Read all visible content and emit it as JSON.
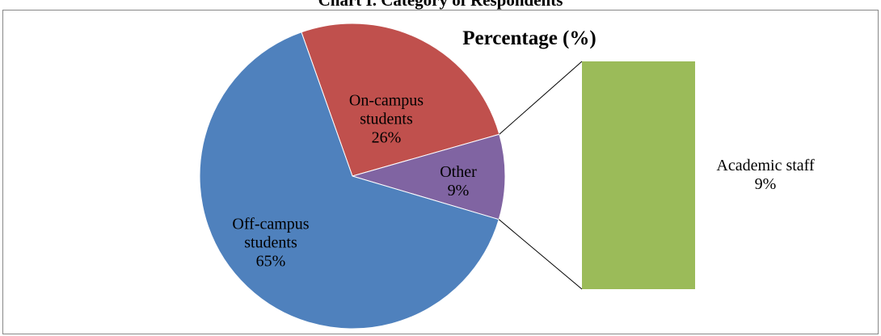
{
  "chart_data": {
    "type": "pie",
    "title": "Chart I. Category of Respondents",
    "subtitle": "Percentage (%)",
    "categories": [
      "On-campus students",
      "Other",
      "Off-campus students"
    ],
    "values": [
      26,
      9,
      65
    ],
    "value_labels": [
      "26%",
      "9%",
      "65%"
    ],
    "colors": [
      "#c0504d",
      "#8064a2",
      "#4f81bd"
    ],
    "bar_of_pie": {
      "categories": [
        "Academic staff"
      ],
      "values": [
        9
      ],
      "value_labels": [
        "9%"
      ],
      "color": "#9bbb59"
    }
  }
}
